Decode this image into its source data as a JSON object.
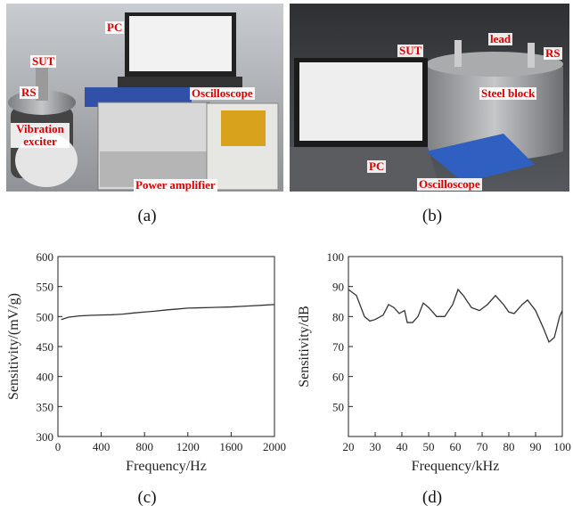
{
  "photos": [
    {
      "caption": "(a)",
      "labels": [
        "PC",
        "SUT",
        "RS",
        "Vibration exciter",
        "Oscilloscope",
        "Power amplifier"
      ]
    },
    {
      "caption": "(b)",
      "labels": [
        "SUT",
        "lead",
        "RS",
        "Steel block",
        "PC",
        "Oscilloscope"
      ]
    }
  ],
  "chart_data": [
    {
      "type": "line",
      "caption": "(c)",
      "x_label": "Frequency/Hz",
      "y_label": "Sensitivity/(mV/g)",
      "x": [
        30,
        100,
        200,
        300,
        400,
        500,
        600,
        700,
        800,
        900,
        1000,
        1100,
        1200,
        1300,
        1400,
        1500,
        1600,
        1700,
        1800,
        1900,
        2000
      ],
      "series": [
        {
          "color": "#333333",
          "values": [
            495,
            499,
            501,
            502,
            502.5,
            503,
            504,
            506,
            507.5,
            509,
            511,
            512.5,
            514,
            514.5,
            515,
            515.5,
            516,
            517,
            518,
            519,
            520
          ]
        }
      ],
      "xlim": [
        0,
        2000
      ],
      "xticks": [
        0,
        400,
        800,
        1200,
        1600,
        2000
      ],
      "ylim": [
        300,
        600
      ],
      "yticks": [
        300,
        350,
        400,
        450,
        500,
        550,
        600
      ]
    },
    {
      "type": "line",
      "caption": "(d)",
      "x_label": "Frequency/kHz",
      "y_label": "Sensitivity/dB",
      "x": [
        20,
        23,
        26,
        28,
        30,
        33,
        35,
        37,
        39,
        41,
        42,
        44,
        46,
        48,
        50,
        53,
        56,
        59,
        61,
        63,
        66,
        69,
        72,
        75,
        78,
        80,
        82,
        85,
        87,
        90,
        93,
        95,
        97,
        99,
        100
      ],
      "series": [
        {
          "color": "#333333",
          "values": [
            89,
            87,
            80,
            78.5,
            79,
            80.5,
            84,
            83,
            81,
            82,
            78,
            78,
            80,
            84.5,
            83,
            80,
            80,
            84,
            89,
            87,
            83,
            82,
            84,
            87,
            84,
            81.5,
            81,
            84,
            85.5,
            82,
            76,
            71.5,
            73,
            80,
            82
          ]
        }
      ],
      "xlim": [
        20,
        100
      ],
      "xticks": [
        20,
        30,
        40,
        50,
        60,
        70,
        80,
        90,
        100
      ],
      "ylim": [
        40,
        100
      ],
      "yticks": [
        50,
        60,
        70,
        80,
        90,
        100
      ]
    }
  ]
}
